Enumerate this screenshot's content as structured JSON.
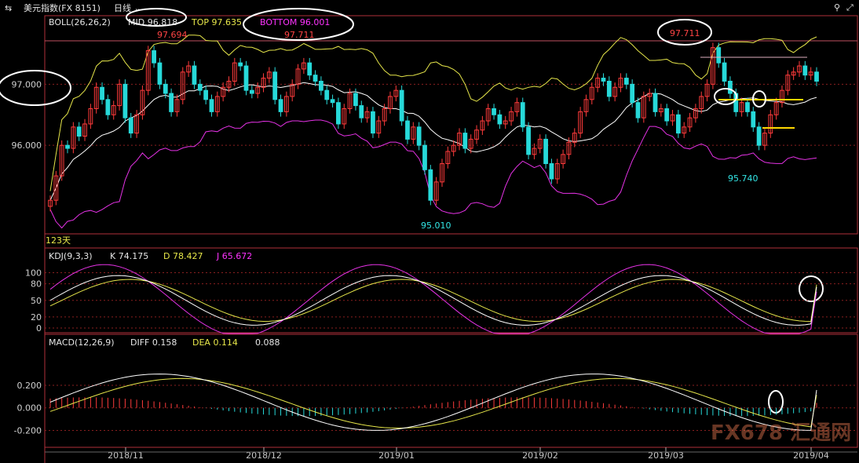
{
  "header": {
    "symbol_icon": "chart-switch-icon",
    "title": "美元指数(FX 8151)",
    "period": "日线",
    "right_icons": [
      "pin-icon",
      "expand-icon"
    ]
  },
  "boll": {
    "label": "BOLL(26,26,2)",
    "mid": "MID 96.818",
    "top": "TOP 97.635",
    "bottom": "BOTTOM 96.001"
  },
  "kdj": {
    "label": "KDJ(9,3,3)",
    "k": "K 74.175",
    "d": "D 78.427",
    "j": "J 65.672"
  },
  "macd": {
    "label": "MACD(12,26,9)",
    "diff": "DIFF 0.158",
    "dea": "DEA 0.114",
    "macd": "0.088"
  },
  "bars_label": "123天",
  "watermark": "FX678 汇通网",
  "annotations": {
    "high1": "97.694",
    "high2": "97.711",
    "high3": "97.711",
    "low1": "95.010",
    "low2": "95.740"
  },
  "colors": {
    "up": "#ff3b3b",
    "down": "#27d9d9",
    "mid_line": "#ffffff",
    "top_line": "#e6e64a",
    "bottom_line": "#e632e6",
    "k_line": "#ffffff",
    "d_line": "#e6e64a",
    "j_line": "#e632e6",
    "grid": "#8a1f1f",
    "frame": "#b0303a",
    "ellipse": "#ffffff",
    "hline": "#ffd700"
  },
  "chart_data": [
    {
      "type": "candlestick",
      "title": "美元指数(FX 8151) 日线",
      "x_ticks": [
        "2018/11",
        "2018/12",
        "2019/01",
        "2019/02",
        "2019/03",
        "2019/04"
      ],
      "y_ticks": [
        "97.000",
        "96.000"
      ],
      "ylim": [
        94.55,
        97.75
      ],
      "close": [
        95.1,
        95.5,
        96.0,
        95.95,
        96.3,
        96.15,
        96.35,
        96.6,
        96.95,
        96.75,
        96.5,
        96.65,
        97.0,
        96.45,
        96.2,
        96.5,
        96.9,
        97.55,
        97.35,
        97.0,
        96.85,
        96.55,
        96.75,
        97.2,
        97.3,
        97.0,
        96.9,
        96.75,
        96.55,
        96.8,
        96.95,
        97.05,
        97.35,
        97.3,
        96.9,
        96.85,
        96.95,
        97.1,
        97.2,
        96.75,
        96.55,
        96.8,
        97.0,
        97.25,
        97.35,
        97.15,
        97.05,
        96.9,
        96.75,
        96.7,
        96.35,
        96.6,
        96.85,
        96.65,
        96.45,
        96.55,
        96.2,
        96.4,
        96.6,
        96.8,
        96.9,
        96.4,
        96.1,
        96.3,
        96.0,
        95.6,
        95.1,
        95.4,
        95.7,
        95.9,
        96.0,
        96.2,
        95.95,
        96.1,
        96.25,
        96.4,
        96.6,
        96.5,
        96.35,
        96.4,
        96.55,
        96.7,
        96.3,
        95.85,
        95.95,
        96.1,
        95.7,
        95.45,
        95.7,
        95.85,
        96.05,
        96.2,
        96.55,
        96.75,
        96.95,
        97.1,
        97.05,
        96.8,
        96.95,
        97.1,
        97.0,
        96.7,
        96.45,
        96.8,
        96.85,
        96.55,
        96.6,
        96.4,
        96.5,
        96.2,
        96.3,
        96.45,
        96.6,
        96.8,
        97.0,
        97.6,
        97.35,
        97.05,
        96.85,
        96.55,
        96.7,
        96.55,
        96.3,
        96.0,
        96.2,
        96.5,
        96.7,
        96.9,
        97.15,
        97.2,
        97.3,
        97.15,
        97.2,
        97.05
      ],
      "boll_mid_end": 96.818,
      "boll_top_end": 97.635,
      "boll_bottom_end": 96.001,
      "ref_line": 97.711
    },
    {
      "type": "line",
      "title": "KDJ(9,3,3)",
      "y_ticks": [
        "100",
        "80",
        "50",
        "20",
        "0"
      ],
      "ylim": [
        -10,
        115
      ],
      "series": [
        {
          "name": "K",
          "end": 74.175
        },
        {
          "name": "D",
          "end": 78.427
        },
        {
          "name": "J",
          "end": 65.672
        }
      ]
    },
    {
      "type": "bar",
      "title": "MACD(12,26,9)",
      "y_ticks": [
        "0.200",
        "0.000",
        "-0.200"
      ],
      "ylim": [
        -0.35,
        0.45
      ],
      "series": [
        {
          "name": "DIFF",
          "end": 0.158
        },
        {
          "name": "DEA",
          "end": 0.114
        },
        {
          "name": "MACD",
          "end": 0.088
        }
      ]
    }
  ]
}
